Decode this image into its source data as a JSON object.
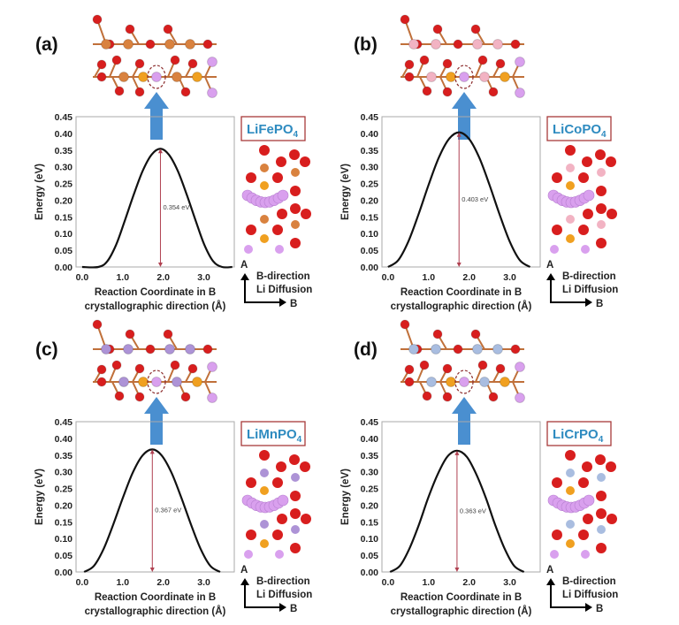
{
  "panels": [
    {
      "label": "(a)",
      "formula": "LiFePO",
      "formula_sub": "4",
      "barrier_label": "0.354 eV",
      "metal_color": "#d9823f"
    },
    {
      "label": "(b)",
      "formula": "LiCoPO",
      "formula_sub": "4",
      "barrier_label": "0.403 eV",
      "metal_color": "#f2b3c3"
    },
    {
      "label": "(c)",
      "formula": "LiMnPO",
      "formula_sub": "4",
      "barrier_label": "0.367 eV",
      "metal_color": "#ad93d6"
    },
    {
      "label": "(d)",
      "formula": "LiCrPO",
      "formula_sub": "4",
      "barrier_label": "0.363 eV",
      "metal_color": "#a9bde0"
    }
  ],
  "direction": {
    "a_label": "A",
    "b_label": "B",
    "line1": "B-direction",
    "line2": "Li Diffusion"
  },
  "colors": {
    "curve": "#111111",
    "arrow": "#b04050",
    "up_arrow": "#4a8fd0",
    "box_border": "#a83a3a",
    "oxygen": "#d81e1e",
    "phosphorus": "#f0a020",
    "lithium": "#d9a0ee"
  },
  "chart_data": [
    {
      "type": "line",
      "title": "",
      "xlabel": [
        "Reaction Coordinate in B",
        "crystallographic direction (Å)"
      ],
      "ylabel": "Energy (eV)",
      "xlim": [
        -0.15,
        3.75
      ],
      "ylim": [
        0,
        0.45
      ],
      "xticks": [
        "0.0",
        "1.0",
        "2.0",
        "3.0"
      ],
      "xtick_values": [
        0,
        1,
        2,
        3
      ],
      "yticks": [
        "0.00",
        "0.05",
        "0.10",
        "0.15",
        "0.20",
        "0.25",
        "0.30",
        "0.35",
        "0.40",
        "0.45"
      ],
      "grid": false,
      "barrier": 0.354,
      "barrier_x": 1.93,
      "series": [
        {
          "name": "LiFePO4",
          "x": [
            0,
            0.4,
            0.62,
            0.84,
            1.05,
            1.27,
            1.49,
            1.71,
            1.93,
            2.14,
            2.36,
            2.58,
            2.8,
            3.01,
            3.23,
            3.45,
            3.7
          ],
          "y": [
            0,
            0,
            0.017,
            0.067,
            0.138,
            0.216,
            0.287,
            0.336,
            0.354,
            0.336,
            0.287,
            0.216,
            0.138,
            0.067,
            0.017,
            0,
            0
          ]
        }
      ]
    },
    {
      "type": "line",
      "title": "",
      "xlabel": [
        "Reaction Coordinate in B",
        "crystallographic direction (Å)"
      ],
      "ylabel": "Energy (eV)",
      "xlim": [
        -0.15,
        3.75
      ],
      "ylim": [
        0,
        0.45
      ],
      "xticks": [
        "0.0",
        "1.0",
        "2.0",
        "3.0"
      ],
      "xtick_values": [
        0,
        1,
        2,
        3
      ],
      "yticks": [
        "0.00",
        "0.05",
        "0.10",
        "0.15",
        "0.20",
        "0.25",
        "0.30",
        "0.35",
        "0.40",
        "0.45"
      ],
      "grid": false,
      "barrier": 0.403,
      "barrier_x": 1.75,
      "series": [
        {
          "name": "LiCoPO4",
          "x": [
            0,
            0.25,
            0.5,
            0.75,
            1.0,
            1.25,
            1.5,
            1.75,
            2.0,
            2.25,
            2.5,
            2.75,
            3.0,
            3.25,
            3.5
          ],
          "y": [
            0,
            0.02,
            0.076,
            0.157,
            0.246,
            0.327,
            0.383,
            0.403,
            0.383,
            0.327,
            0.246,
            0.157,
            0.076,
            0.02,
            0
          ]
        }
      ]
    },
    {
      "type": "line",
      "title": "",
      "xlabel": [
        "Reaction Coordinate in B",
        "crystallographic direction (Å)"
      ],
      "ylabel": "Energy (eV)",
      "xlim": [
        -0.15,
        3.75
      ],
      "ylim": [
        0,
        0.45
      ],
      "xticks": [
        "0.0",
        "1.0",
        "2.0",
        "3.0"
      ],
      "xtick_values": [
        0,
        1,
        2,
        3
      ],
      "yticks": [
        "0.00",
        "0.05",
        "0.10",
        "0.15",
        "0.20",
        "0.25",
        "0.30",
        "0.35",
        "0.40",
        "0.45"
      ],
      "grid": false,
      "barrier": 0.367,
      "barrier_x": 1.73,
      "series": [
        {
          "name": "LiMnPO4",
          "x": [
            0.05,
            0.29,
            0.53,
            0.77,
            1.01,
            1.25,
            1.49,
            1.73,
            1.96,
            2.2,
            2.44,
            2.68,
            2.92,
            3.16,
            3.4
          ],
          "y": [
            0,
            0.018,
            0.069,
            0.143,
            0.224,
            0.298,
            0.349,
            0.367,
            0.349,
            0.298,
            0.224,
            0.143,
            0.069,
            0.018,
            0
          ]
        }
      ]
    },
    {
      "type": "line",
      "title": "",
      "xlabel": [
        "Reaction Coordinate in B",
        "crystallographic direction (Å)"
      ],
      "ylabel": "Energy (eV)",
      "xlim": [
        -0.15,
        3.75
      ],
      "ylim": [
        0,
        0.45
      ],
      "xticks": [
        "0.0",
        "1.0",
        "2.0",
        "3.0"
      ],
      "xtick_values": [
        0,
        1,
        2,
        3
      ],
      "yticks": [
        "0.00",
        "0.05",
        "0.10",
        "0.15",
        "0.20",
        "0.25",
        "0.30",
        "0.35",
        "0.40",
        "0.45"
      ],
      "grid": false,
      "barrier": 0.363,
      "barrier_x": 1.7,
      "series": [
        {
          "name": "LiCrPO4",
          "x": [
            0.05,
            0.29,
            0.52,
            0.76,
            0.99,
            1.23,
            1.46,
            1.7,
            1.94,
            2.17,
            2.41,
            2.64,
            2.88,
            3.11,
            3.35
          ],
          "y": [
            0,
            0.018,
            0.068,
            0.141,
            0.222,
            0.294,
            0.345,
            0.363,
            0.345,
            0.294,
            0.222,
            0.141,
            0.068,
            0.018,
            0
          ]
        }
      ]
    }
  ]
}
